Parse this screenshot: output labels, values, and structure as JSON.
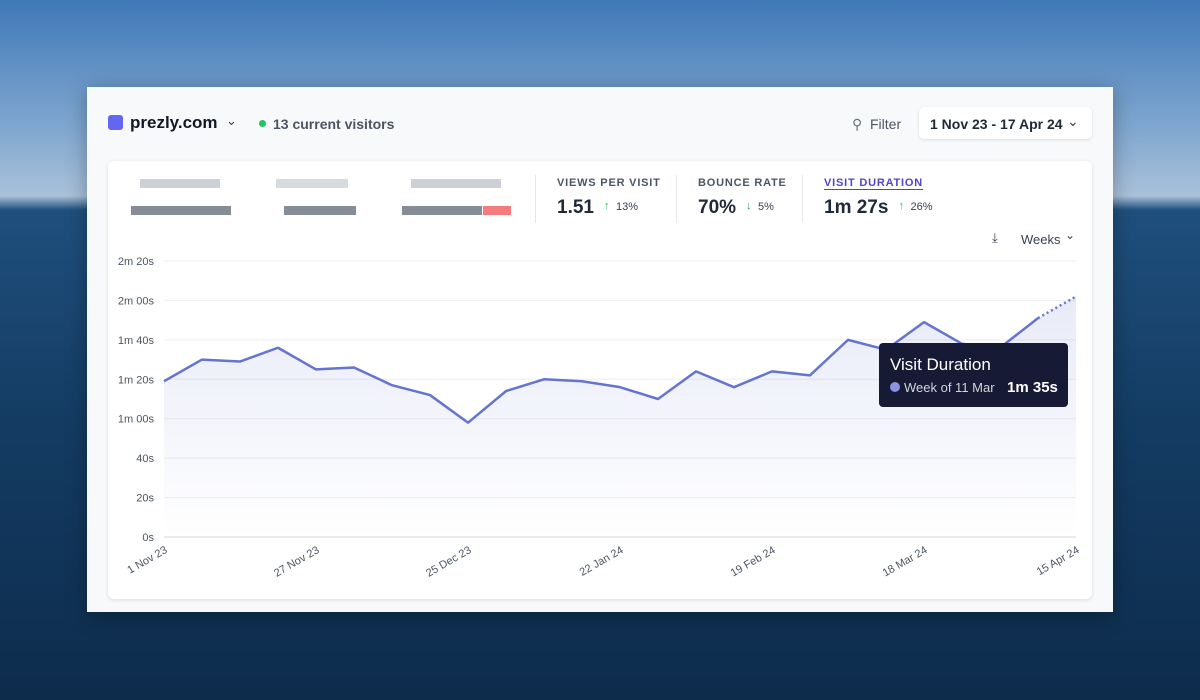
{
  "header": {
    "site": "prezly.com",
    "visitors": "13 current visitors",
    "filter": "Filter",
    "date_range": "1 Nov 23 - 17 Apr 24"
  },
  "stats": [
    {
      "label": "VIEWS PER VISIT",
      "value": "1.51",
      "change": "13%",
      "direction": "up"
    },
    {
      "label": "BOUNCE RATE",
      "value": "70%",
      "change": "5%",
      "direction": "down"
    },
    {
      "label": "VISIT DURATION",
      "value": "1m 27s",
      "change": "26%",
      "direction": "up"
    }
  ],
  "interval": "Weeks",
  "tooltip": {
    "title": "Visit Duration",
    "period": "Week of 11 Mar",
    "value": "1m 35s"
  },
  "chart_data": {
    "type": "line",
    "categories": [
      "1 Nov 23",
      null,
      null,
      null,
      "27 Nov 23",
      null,
      null,
      null,
      "25 Dec 23",
      null,
      null,
      null,
      "22 Jan 24",
      null,
      null,
      null,
      "19 Feb 24",
      null,
      null,
      null,
      "18 Mar 24",
      null,
      null,
      null,
      "15 Apr 24"
    ],
    "series": [
      {
        "name": "Visit Duration",
        "color": "#6574cd",
        "values": [
          79,
          90,
          89,
          96,
          85,
          86,
          77,
          72,
          58,
          74,
          80,
          79,
          76,
          70,
          84,
          76,
          84,
          82,
          100,
          95,
          109,
          98,
          96,
          111,
          122
        ]
      }
    ],
    "ylim": [
      0,
      140
    ],
    "yticks": [
      {
        "value": 0,
        "label": "0s"
      },
      {
        "value": 20,
        "label": "20s"
      },
      {
        "value": 40,
        "label": "40s"
      },
      {
        "value": 60,
        "label": "1m 00s"
      },
      {
        "value": 80,
        "label": "1m 20s"
      },
      {
        "value": 100,
        "label": "1m 40s"
      },
      {
        "value": 120,
        "label": "2m 00s"
      },
      {
        "value": 140,
        "label": "2m 20s"
      }
    ],
    "grid": true,
    "dotted_last_segment": true
  }
}
